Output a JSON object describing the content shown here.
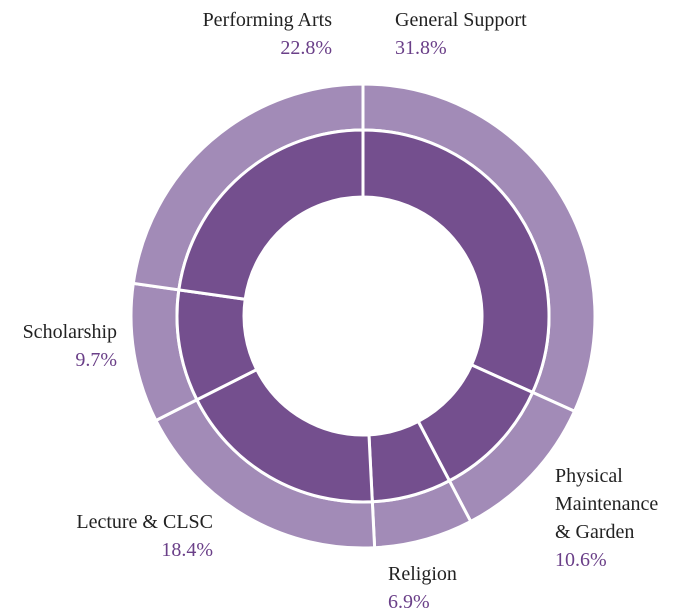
{
  "chart_data": {
    "type": "donut",
    "categories": [
      "General Support",
      "Physical Maintenance & Garden",
      "Religion",
      "Lecture & CLSC",
      "Scholarship",
      "Performing Arts"
    ],
    "values": [
      31.8,
      10.6,
      6.9,
      18.4,
      9.7,
      22.8
    ],
    "value_labels": [
      "31.8%",
      "10.6%",
      "6.9%",
      "18.4%",
      "9.7%",
      "22.8%"
    ],
    "outer_color": "#a28bb7",
    "inner_color": "#744f8e",
    "label_color": "#6a3f88"
  }
}
